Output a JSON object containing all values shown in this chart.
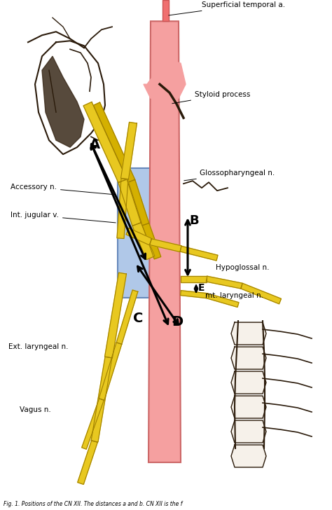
{
  "bg_color": "#ffffff",
  "caption": "Fig. 1. Positions of the CN XII. The distances a and b. CN XII is the f",
  "labels": {
    "superficial_temporal": "Superficial temporal a.",
    "styloid": "Styloid process",
    "glossopharyngeal": "Glossopharyngeal n.",
    "accessory": "Accessory n.",
    "int_jugular": "Int. jugular v.",
    "ext_laryngeal": "Ext. laryngeal n.",
    "vagus": "Vagus n.",
    "hypoglossal": "Hypoglossal n.",
    "int_laryngeal": "mt. laryngeal n.",
    "A": "A",
    "B": "B",
    "C": "C",
    "D": "D",
    "E": "E"
  },
  "colors": {
    "artery_pink": "#f08080",
    "nerve_yellow": "#e8c820",
    "nerve_yellow2": "#d4b000",
    "vein_blue": "#b0c8e8",
    "line_black": "#000000",
    "sketch": "#2a1a0a",
    "dark_fill": "#3a2a1a",
    "vert_fill": "#f5f0e8"
  }
}
